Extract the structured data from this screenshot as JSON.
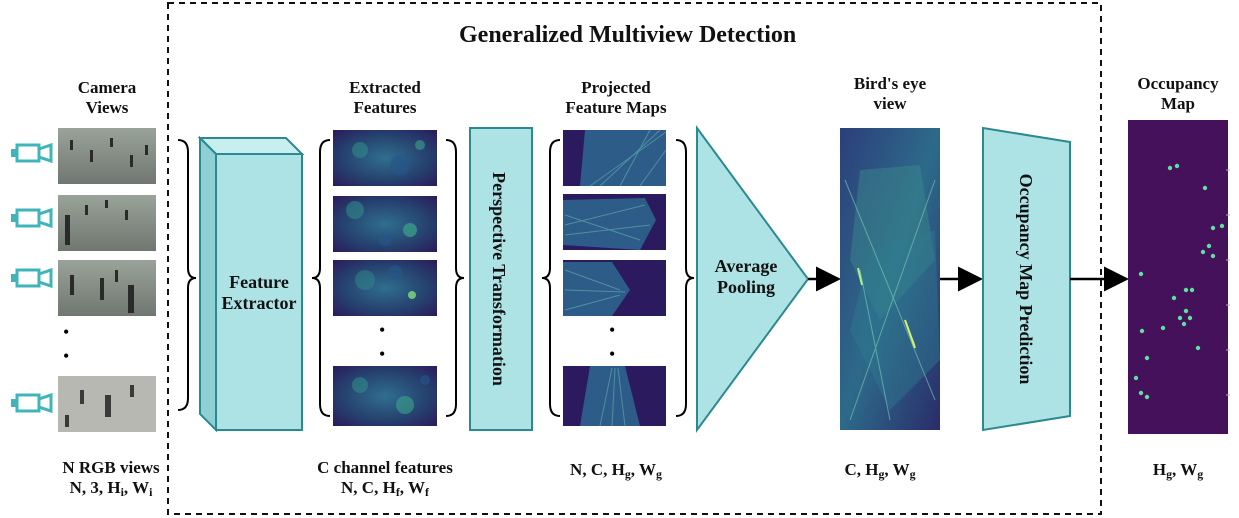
{
  "title": "Generalized  Multiview Detection",
  "columns": {
    "camera": {
      "label_line1": "Camera",
      "label_line2": "Views",
      "dim_line1": "N RGB views",
      "dim_line2_main": "N, 3, H",
      "dim_line2_sub1": "i",
      "dim_line2_sep": ", W",
      "dim_line2_sub2": "i"
    },
    "extracted": {
      "label_line1": "Extracted",
      "label_line2": "Features",
      "dim_line1": "C channel features",
      "dim_line2_main": "N, C, H",
      "dim_line2_sub1": "f",
      "dim_line2_sep": ", W",
      "dim_line2_sub2": "f"
    },
    "projected": {
      "label_line1": "Projected",
      "label_line2": "Feature Maps",
      "dim_main": "N, C, H",
      "dim_sub1": "g",
      "dim_sep": ", W",
      "dim_sub2": "g"
    },
    "bev": {
      "label_line1": "Bird's eye",
      "label_line2": "view",
      "dim_main": "C, H",
      "dim_sub1": "g",
      "dim_sep": ", W",
      "dim_sub2": "g"
    },
    "occupancy": {
      "label_line1": "Occupancy",
      "label_line2": "Map",
      "dim_main": "H",
      "dim_sub1": "g",
      "dim_sep": ", W",
      "dim_sub2": "g"
    }
  },
  "blocks": {
    "feature_extractor": {
      "line1": "Feature",
      "line2": "Extractor"
    },
    "perspective": "Perspective Transformation",
    "pooling": {
      "line1": "Average",
      "line2": "Pooling"
    },
    "prediction": "Occupancy Map Prediction"
  },
  "ellipsis": "•",
  "colors": {
    "block_fill": "#aee3e6",
    "block_stroke": "#2a8a8f",
    "camera_icon": "#3fb4bb",
    "feature_dark": "#2b1a5e",
    "occupancy_bg": "#44115a",
    "occupancy_dot": "#5fe0a0"
  }
}
